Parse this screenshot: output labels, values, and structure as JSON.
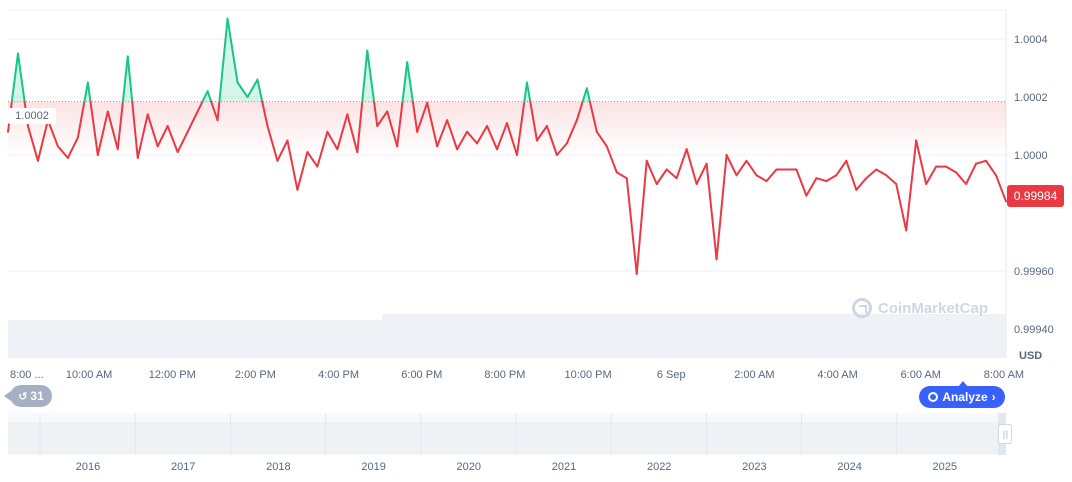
{
  "chart_data": {
    "type": "line",
    "currency": "USD",
    "current_price_label": "0.99984",
    "reference_label": "1.0002",
    "reference_value": 1.000184,
    "ylim": [
      0.9993,
      1.0005
    ],
    "y_ticks": [
      {
        "value": 1.0004,
        "label": "1.0004"
      },
      {
        "value": 1.0002,
        "label": "1.0002"
      },
      {
        "value": 1.0,
        "label": "1.0000"
      },
      {
        "value": 0.9996,
        "label": "0.99960"
      },
      {
        "value": 0.9994,
        "label": "0.99940"
      }
    ],
    "x_tick_labels": [
      "8:00 ...",
      "10:00 AM",
      "12:00 PM",
      "2:00 PM",
      "4:00 PM",
      "6:00 PM",
      "8:00 PM",
      "10:00 PM",
      "6 Sep",
      "2:00 AM",
      "4:00 AM",
      "6:00 AM",
      "8:00 AM"
    ],
    "x_range_hours": [
      0,
      24
    ],
    "x_tick_hours": [
      0.1,
      1.95,
      3.95,
      5.95,
      7.95,
      9.95,
      11.95,
      13.95,
      15.95,
      17.95,
      19.95,
      21.95,
      23.95
    ],
    "series": [
      {
        "x_hours": [
          0.0,
          0.24,
          0.48,
          0.72,
          0.96,
          1.2,
          1.44,
          1.68,
          1.92,
          2.16,
          2.4,
          2.64,
          2.88,
          3.12,
          3.36,
          3.6,
          3.84,
          4.08,
          4.32,
          4.56,
          4.8,
          5.04,
          5.28,
          5.52,
          5.76,
          6.0,
          6.24,
          6.48,
          6.72,
          6.96,
          7.2,
          7.44,
          7.68,
          7.92,
          8.16,
          8.4,
          8.64,
          8.88,
          9.12,
          9.36,
          9.6,
          9.84,
          10.08,
          10.32,
          10.56,
          10.8,
          11.04,
          11.28,
          11.52,
          11.76,
          12.0,
          12.24,
          12.48,
          12.72,
          12.96,
          13.2,
          13.44,
          13.68,
          13.92,
          14.16,
          14.4,
          14.64,
          14.88,
          15.12,
          15.36,
          15.6,
          15.84,
          16.08,
          16.32,
          16.56,
          16.8,
          17.04,
          17.28,
          17.52,
          17.76,
          18.0,
          18.24,
          18.48,
          18.72,
          18.96,
          19.2,
          19.44,
          19.68,
          19.92,
          20.16,
          20.4,
          20.64,
          20.88,
          21.12,
          21.36,
          21.6,
          21.84,
          22.08,
          22.32,
          22.56,
          22.8,
          23.04,
          23.28,
          23.52,
          23.76,
          24.0
        ],
        "values": [
          1.00008,
          1.00035,
          1.0001,
          0.99998,
          1.00012,
          1.00003,
          0.99999,
          1.00006,
          1.00025,
          1.0,
          1.00015,
          1.00002,
          1.00034,
          0.99999,
          1.00014,
          1.00003,
          1.0001,
          1.00001,
          1.00008,
          1.00015,
          1.00022,
          1.00012,
          1.00047,
          1.00025,
          1.0002,
          1.00026,
          1.0001,
          0.99998,
          1.00005,
          0.99988,
          1.00001,
          0.99996,
          1.00008,
          1.00002,
          1.00014,
          1.00001,
          1.00036,
          1.0001,
          1.00015,
          1.00003,
          1.00032,
          1.00008,
          1.00018,
          1.00003,
          1.00012,
          1.00002,
          1.00008,
          1.00004,
          1.0001,
          1.00002,
          1.00011,
          1.0,
          1.00025,
          1.00005,
          1.0001,
          1.0,
          1.00004,
          1.00012,
          1.00023,
          1.00008,
          1.00003,
          0.99994,
          0.99992,
          0.99959,
          0.99998,
          0.9999,
          0.99995,
          0.99992,
          1.00002,
          0.9999,
          0.99997,
          0.99964,
          1.0,
          0.99993,
          0.99998,
          0.99993,
          0.99991,
          0.99995,
          0.99995,
          0.99995,
          0.99986,
          0.99992,
          0.99991,
          0.99993,
          0.99998,
          0.99988,
          0.99992,
          0.99995,
          0.99993,
          0.9999,
          0.99974,
          1.00005,
          0.9999,
          0.99996,
          0.99996,
          0.99994,
          0.9999,
          0.99997,
          0.99998,
          0.99993,
          0.99984
        ]
      }
    ],
    "colors": {
      "up": "#16c784",
      "down": "#ea3943",
      "grid": "#eff2f5",
      "axis_text": "#58667e"
    },
    "volume_level": 0.25,
    "navigator": {
      "year_labels": [
        "2016",
        "2017",
        "2018",
        "2019",
        "2020",
        "2021",
        "2022",
        "2023",
        "2024",
        "2025"
      ]
    }
  },
  "controls": {
    "history_count": "31",
    "analyze_label": "Analyze"
  },
  "brand": {
    "watermark_text": "CoinMarketCap"
  }
}
